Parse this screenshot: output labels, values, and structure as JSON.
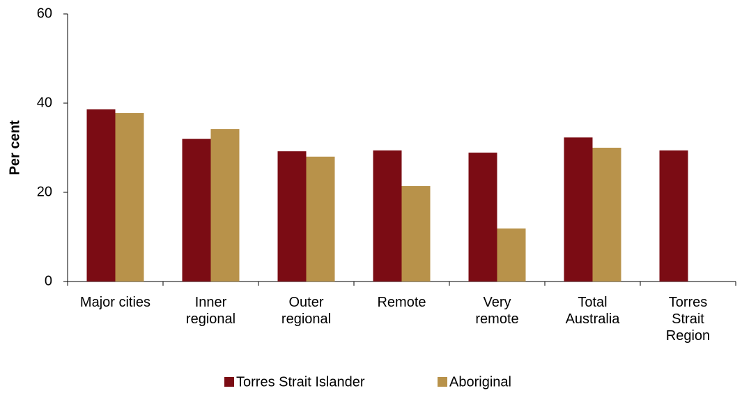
{
  "chart_data": {
    "type": "bar",
    "y_label": "Per cent",
    "categories": [
      "Major cities",
      "Inner\nregional",
      "Outer\nregional",
      "Remote",
      "Very\nremote",
      "Total\nAustralia",
      "Torres\nStrait\nRegion"
    ],
    "series": [
      {
        "name": "Torres Strait Islander",
        "color": "#7b0c14",
        "values": [
          38.6,
          32.0,
          29.2,
          29.4,
          28.9,
          32.3,
          29.4
        ]
      },
      {
        "name": "Aboriginal",
        "color": "#b8924a",
        "values": [
          37.8,
          34.2,
          28.0,
          21.4,
          11.9,
          30.0,
          null
        ]
      }
    ],
    "ylim": [
      0,
      60
    ],
    "yticks": [
      0,
      20,
      40,
      60
    ],
    "legend": "bottom"
  }
}
